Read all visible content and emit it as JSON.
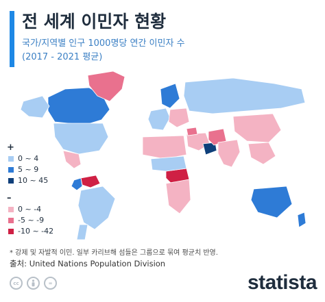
{
  "header": {
    "accent_color": "#1e88e5",
    "title": "전 세계 이민자 현황",
    "subtitle_line1": "국가/지역별 인구 1000명당 연간 이민자 수",
    "subtitle_line2": "(2017 - 2021 평균)"
  },
  "legend": {
    "positive_sign": "+",
    "negative_sign": "–",
    "positive": [
      {
        "label": "0 ~ 4",
        "color": "#a8cdf3"
      },
      {
        "label": "5 ~ 9",
        "color": "#2e7bd6"
      },
      {
        "label": "10 ~ 45",
        "color": "#0f3f7a"
      }
    ],
    "negative": [
      {
        "label": "0 ~ -4",
        "color": "#f4b3c3"
      },
      {
        "label": "-5 ~ -9",
        "color": "#e9718e"
      },
      {
        "label": "-10 ~ -42",
        "color": "#cf2044"
      }
    ]
  },
  "chart_data": {
    "type": "choropleth",
    "measure": "Net migrants per 1,000 population (2017-2021 average)",
    "bins": [
      {
        "range": [
          10,
          45
        ],
        "color": "#0f3f7a"
      },
      {
        "range": [
          5,
          9
        ],
        "color": "#2e7bd6"
      },
      {
        "range": [
          0,
          4
        ],
        "color": "#a8cdf3"
      },
      {
        "range": [
          0,
          -4
        ],
        "color": "#f4b3c3"
      },
      {
        "range": [
          -5,
          -9
        ],
        "color": "#e9718e"
      },
      {
        "range": [
          -10,
          -42
        ],
        "color": "#cf2044"
      }
    ],
    "regions": [
      {
        "name": "Canada",
        "bin": "5 ~ 9"
      },
      {
        "name": "Alaska (USA)",
        "bin": "0 ~ 4"
      },
      {
        "name": "USA",
        "bin": "0 ~ 4"
      },
      {
        "name": "Greenland",
        "bin": "-5 ~ -9"
      },
      {
        "name": "Mexico",
        "bin": "0 ~ -4"
      },
      {
        "name": "Venezuela",
        "bin": "-10 ~ -42"
      },
      {
        "name": "Colombia",
        "bin": "5 ~ 9"
      },
      {
        "name": "Brazil",
        "bin": "0 ~ 4"
      },
      {
        "name": "Argentina",
        "bin": "0 ~ 4"
      },
      {
        "name": "Western Europe",
        "bin": "0 ~ 4"
      },
      {
        "name": "Scandinavia",
        "bin": "5 ~ 9"
      },
      {
        "name": "Eastern Europe",
        "bin": "0 ~ -4"
      },
      {
        "name": "Russia",
        "bin": "0 ~ 4"
      },
      {
        "name": "North Africa",
        "bin": "0 ~ -4"
      },
      {
        "name": "South Sudan region",
        "bin": "-10 ~ -42"
      },
      {
        "name": "Central Africa",
        "bin": "0 ~ 4"
      },
      {
        "name": "Southern Africa",
        "bin": "0 ~ -4"
      },
      {
        "name": "Middle East",
        "bin": "0 ~ -4"
      },
      {
        "name": "Gulf states",
        "bin": "10 ~ 45"
      },
      {
        "name": "Syria",
        "bin": "-5 ~ -9"
      },
      {
        "name": "Pakistan / Afghanistan",
        "bin": "-5 ~ -9"
      },
      {
        "name": "India",
        "bin": "0 ~ -4"
      },
      {
        "name": "China",
        "bin": "0 ~ -4"
      },
      {
        "name": "Southeast Asia",
        "bin": "0 ~ -4"
      },
      {
        "name": "Australia",
        "bin": "5 ~ 9"
      },
      {
        "name": "New Zealand",
        "bin": "5 ~ 9"
      }
    ]
  },
  "footer": {
    "note": "* 강제 및 자발적 이민. 일부 카리브해 섬들은 그룹으로 묶여 평균치 반영.",
    "source": "출처: United Nations Population Division",
    "cc_icons": [
      "cc",
      "by",
      "="
    ],
    "brand": "statista"
  }
}
